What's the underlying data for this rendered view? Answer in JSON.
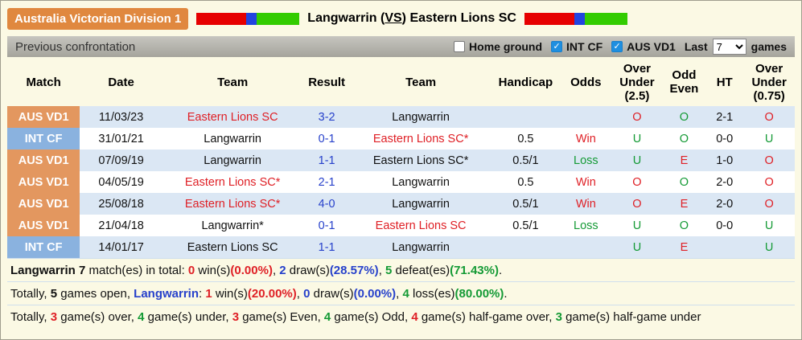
{
  "header": {
    "league": "Australia Victorian Division 1",
    "home_team": "Langwarrin",
    "vs_label": "VS",
    "away_team": "Eastern Lions SC"
  },
  "colors": {
    "flag_bar": [
      "#e60000",
      "#2244e0",
      "#33cc00"
    ],
    "red": "#df2026",
    "green": "#149a35",
    "blue": "#2741cb",
    "aus_badge": "#e3975f",
    "int_badge": "#8ab2df",
    "row_alt": "#dbe7f4"
  },
  "toolbar": {
    "title": "Previous confrontation",
    "filters": [
      {
        "label": "Home ground",
        "checked": false
      },
      {
        "label": "INT CF",
        "checked": true
      },
      {
        "label": "AUS VD1",
        "checked": true
      }
    ],
    "last_label": "Last",
    "last_value": "7",
    "games_label": "games"
  },
  "table": {
    "headers": [
      "Match",
      "Date",
      "Team",
      "Result",
      "Team",
      "Handicap",
      "Odds",
      "Over Under (2.5)",
      "Odd Even",
      "HT",
      "Over Under (0.75)"
    ],
    "rows": [
      {
        "match": "AUS VD1",
        "badge": "aus",
        "date": "11/03/23",
        "team1": {
          "t": "Eastern Lions SC",
          "c": "r"
        },
        "result": "3-2",
        "team2": {
          "t": "Langwarrin",
          "c": ""
        },
        "handicap": "",
        "odds": {
          "t": "",
          "c": ""
        },
        "ou25": {
          "t": "O",
          "c": "r"
        },
        "oddEven": {
          "t": "O",
          "c": "g"
        },
        "ht": "2-1",
        "ou075": {
          "t": "O",
          "c": "r"
        }
      },
      {
        "match": "INT CF",
        "badge": "int",
        "date": "31/01/21",
        "team1": {
          "t": "Langwarrin",
          "c": ""
        },
        "result": "0-1",
        "team2": {
          "t": "Eastern Lions SC*",
          "c": "r"
        },
        "handicap": "0.5",
        "odds": {
          "t": "Win",
          "c": "r"
        },
        "ou25": {
          "t": "U",
          "c": "g"
        },
        "oddEven": {
          "t": "O",
          "c": "g"
        },
        "ht": "0-0",
        "ou075": {
          "t": "U",
          "c": "g"
        }
      },
      {
        "match": "AUS VD1",
        "badge": "aus",
        "date": "07/09/19",
        "team1": {
          "t": "Langwarrin",
          "c": ""
        },
        "result": "1-1",
        "team2": {
          "t": "Eastern Lions SC*",
          "c": ""
        },
        "handicap": "0.5/1",
        "odds": {
          "t": "Loss",
          "c": "g"
        },
        "ou25": {
          "t": "U",
          "c": "g"
        },
        "oddEven": {
          "t": "E",
          "c": "r"
        },
        "ht": "1-0",
        "ou075": {
          "t": "O",
          "c": "r"
        }
      },
      {
        "match": "AUS VD1",
        "badge": "aus",
        "date": "04/05/19",
        "team1": {
          "t": "Eastern Lions SC*",
          "c": "r"
        },
        "result": "2-1",
        "team2": {
          "t": "Langwarrin",
          "c": ""
        },
        "handicap": "0.5",
        "odds": {
          "t": "Win",
          "c": "r"
        },
        "ou25": {
          "t": "O",
          "c": "r"
        },
        "oddEven": {
          "t": "O",
          "c": "g"
        },
        "ht": "2-0",
        "ou075": {
          "t": "O",
          "c": "r"
        }
      },
      {
        "match": "AUS VD1",
        "badge": "aus",
        "date": "25/08/18",
        "team1": {
          "t": "Eastern Lions SC*",
          "c": "r"
        },
        "result": "4-0",
        "team2": {
          "t": "Langwarrin",
          "c": ""
        },
        "handicap": "0.5/1",
        "odds": {
          "t": "Win",
          "c": "r"
        },
        "ou25": {
          "t": "O",
          "c": "r"
        },
        "oddEven": {
          "t": "E",
          "c": "r"
        },
        "ht": "2-0",
        "ou075": {
          "t": "O",
          "c": "r"
        }
      },
      {
        "match": "AUS VD1",
        "badge": "aus",
        "date": "21/04/18",
        "team1": {
          "t": "Langwarrin*",
          "c": ""
        },
        "result": "0-1",
        "team2": {
          "t": "Eastern Lions SC",
          "c": "r"
        },
        "handicap": "0.5/1",
        "odds": {
          "t": "Loss",
          "c": "g"
        },
        "ou25": {
          "t": "U",
          "c": "g"
        },
        "oddEven": {
          "t": "O",
          "c": "g"
        },
        "ht": "0-0",
        "ou075": {
          "t": "U",
          "c": "g"
        }
      },
      {
        "match": "INT CF",
        "badge": "int",
        "date": "14/01/17",
        "team1": {
          "t": "Eastern Lions SC",
          "c": ""
        },
        "result": "1-1",
        "team2": {
          "t": "Langwarrin",
          "c": ""
        },
        "handicap": "",
        "odds": {
          "t": "",
          "c": ""
        },
        "ou25": {
          "t": "U",
          "c": "g"
        },
        "oddEven": {
          "t": "E",
          "c": "r"
        },
        "ht": "",
        "ou075": {
          "t": "U",
          "c": "g"
        }
      }
    ]
  },
  "summary": [
    [
      {
        "t": "Langwarrin ",
        "b": true
      },
      {
        "t": "7",
        "b": true
      },
      {
        "t": " match(es) in total: "
      },
      {
        "t": "0",
        "b": true,
        "c": "r"
      },
      {
        "t": " win(s)"
      },
      {
        "t": "(0.00%)",
        "b": true,
        "c": "r"
      },
      {
        "t": ", "
      },
      {
        "t": "2",
        "b": true,
        "c": "bl"
      },
      {
        "t": " draw(s)"
      },
      {
        "t": "(28.57%)",
        "b": true,
        "c": "bl"
      },
      {
        "t": ", "
      },
      {
        "t": "5",
        "b": true,
        "c": "g"
      },
      {
        "t": " defeat(es)"
      },
      {
        "t": "(71.43%)",
        "b": true,
        "c": "g"
      },
      {
        "t": "."
      }
    ],
    [
      {
        "t": "Totally, "
      },
      {
        "t": "5",
        "b": true
      },
      {
        "t": " games open, "
      },
      {
        "t": "Langwarrin",
        "b": true,
        "c": "bl"
      },
      {
        "t": ": "
      },
      {
        "t": "1",
        "b": true,
        "c": "r"
      },
      {
        "t": " win(s)"
      },
      {
        "t": "(20.00%)",
        "b": true,
        "c": "r"
      },
      {
        "t": ", "
      },
      {
        "t": "0",
        "b": true,
        "c": "bl"
      },
      {
        "t": " draw(s)"
      },
      {
        "t": "(0.00%)",
        "b": true,
        "c": "bl"
      },
      {
        "t": ", "
      },
      {
        "t": "4",
        "b": true,
        "c": "g"
      },
      {
        "t": " loss(es)"
      },
      {
        "t": "(80.00%)",
        "b": true,
        "c": "g"
      },
      {
        "t": "."
      }
    ],
    [
      {
        "t": "Totally, "
      },
      {
        "t": "3",
        "b": true,
        "c": "r"
      },
      {
        "t": " game(s) over, "
      },
      {
        "t": "4",
        "b": true,
        "c": "g"
      },
      {
        "t": " game(s) under, "
      },
      {
        "t": "3",
        "b": true,
        "c": "r"
      },
      {
        "t": " game(s) Even, "
      },
      {
        "t": "4",
        "b": true,
        "c": "g"
      },
      {
        "t": " game(s) Odd, "
      },
      {
        "t": "4",
        "b": true,
        "c": "r"
      },
      {
        "t": " game(s) half-game over, "
      },
      {
        "t": "3",
        "b": true,
        "c": "g"
      },
      {
        "t": " game(s) half-game under"
      }
    ]
  ]
}
